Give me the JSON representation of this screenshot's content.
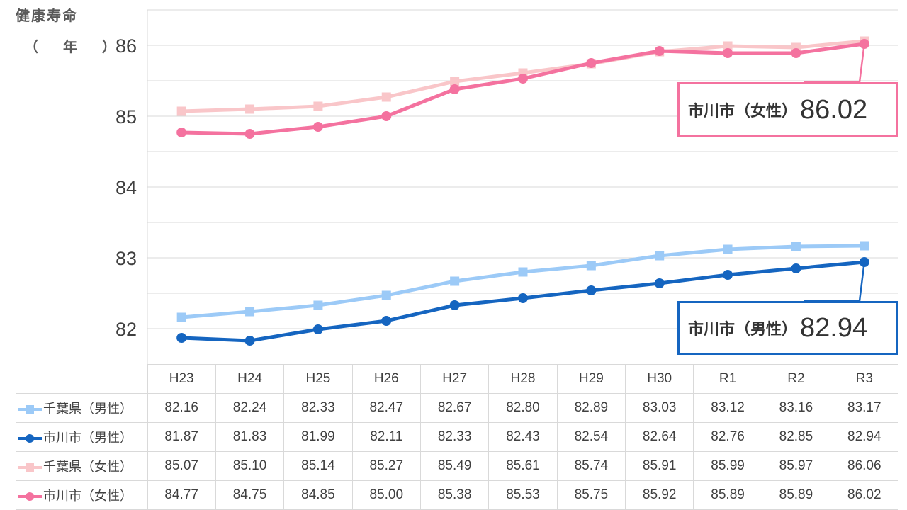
{
  "ylabel": {
    "title": "健康寿命",
    "unit": "（ 年 ）"
  },
  "chart_data": {
    "type": "line",
    "categories": [
      "H23",
      "H24",
      "H25",
      "H26",
      "H27",
      "H28",
      "H29",
      "H30",
      "R1",
      "R2",
      "R3"
    ],
    "ylim": [
      81.5,
      86.5
    ],
    "yticks": [
      "82",
      "83",
      "84",
      "85",
      "86"
    ],
    "series": [
      {
        "name": "千葉県（男性）",
        "color": "#9ccaf7",
        "marker": "square",
        "values": [
          82.16,
          82.24,
          82.33,
          82.47,
          82.67,
          82.8,
          82.89,
          83.03,
          83.12,
          83.16,
          83.17
        ],
        "labels": [
          "82.16",
          "82.24",
          "82.33",
          "82.47",
          "82.67",
          "82.80",
          "82.89",
          "83.03",
          "83.12",
          "83.16",
          "83.17"
        ]
      },
      {
        "name": "市川市（男性）",
        "color": "#1565c0",
        "marker": "circle",
        "values": [
          81.87,
          81.83,
          81.99,
          82.11,
          82.33,
          82.43,
          82.54,
          82.64,
          82.76,
          82.85,
          82.94
        ],
        "labels": [
          "81.87",
          "81.83",
          "81.99",
          "82.11",
          "82.33",
          "82.43",
          "82.54",
          "82.64",
          "82.76",
          "82.85",
          "82.94"
        ]
      },
      {
        "name": "千葉県（女性）",
        "color": "#f9c6c9",
        "marker": "square",
        "values": [
          85.07,
          85.1,
          85.14,
          85.27,
          85.49,
          85.61,
          85.74,
          85.91,
          85.99,
          85.97,
          86.06
        ],
        "labels": [
          "85.07",
          "85.10",
          "85.14",
          "85.27",
          "85.49",
          "85.61",
          "85.74",
          "85.91",
          "85.99",
          "85.97",
          "86.06"
        ]
      },
      {
        "name": "市川市（女性）",
        "color": "#f4729f",
        "marker": "circle",
        "values": [
          84.77,
          84.75,
          84.85,
          85.0,
          85.38,
          85.53,
          85.75,
          85.92,
          85.89,
          85.89,
          86.02
        ],
        "labels": [
          "84.77",
          "84.75",
          "84.85",
          "85.00",
          "85.38",
          "85.53",
          "85.75",
          "85.92",
          "85.89",
          "85.89",
          "86.02"
        ]
      }
    ],
    "callouts": [
      {
        "id": "female",
        "label": "市川市（女性）",
        "value": "86.02",
        "color": "#f4729f",
        "series": 3
      },
      {
        "id": "male",
        "label": "市川市（男性）",
        "value": "82.94",
        "color": "#1565c0",
        "series": 1
      }
    ]
  }
}
